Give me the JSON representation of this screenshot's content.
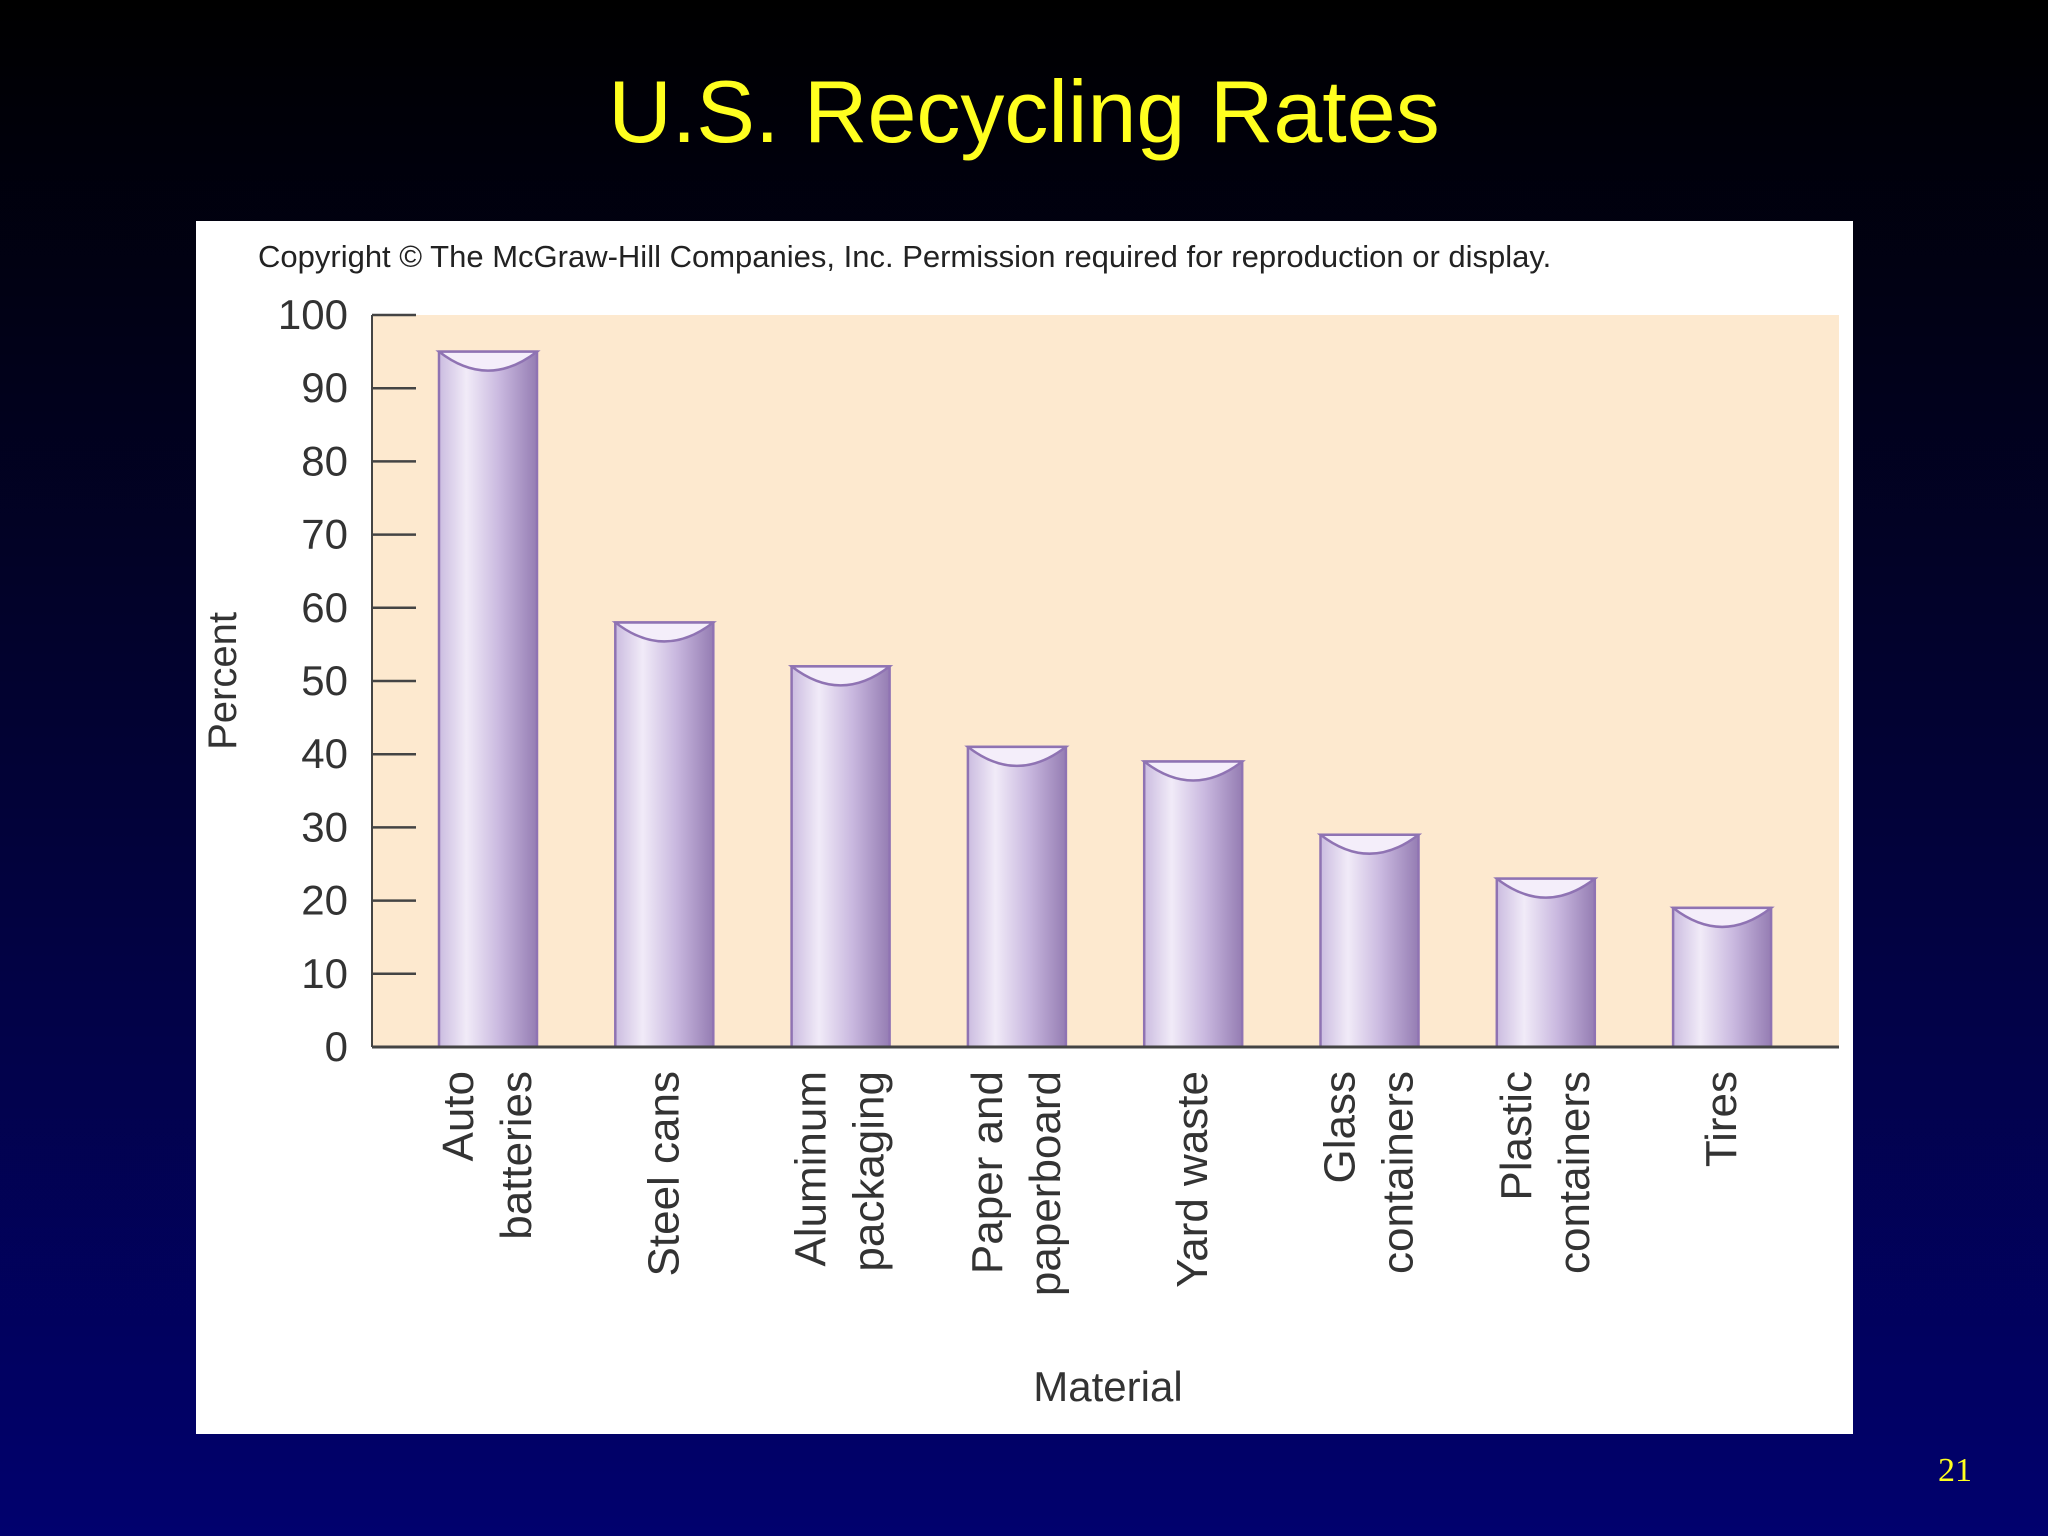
{
  "slide": {
    "title": "U.S. Recycling Rates",
    "page_number": "21"
  },
  "figure": {
    "copyright": "Copyright © The McGraw-Hill Companies, Inc. Permission required for reproduction or display."
  },
  "colors": {
    "background_top": "#000000",
    "background_bottom": "#01016e",
    "title": "#ffff1f",
    "plot_area": "#fde9cf",
    "bar_light": "#ece2f5",
    "bar_dark": "#9a84b6",
    "bar_edge": "#8f73b3"
  },
  "chart_data": {
    "type": "bar",
    "title": "",
    "xlabel": "Material",
    "ylabel": "Percent",
    "ylim": [
      0,
      100
    ],
    "yticks": [
      0,
      10,
      20,
      30,
      40,
      50,
      60,
      70,
      80,
      90,
      100
    ],
    "grid": false,
    "categories": [
      [
        "Auto",
        "batteries"
      ],
      [
        "Steel cans"
      ],
      [
        "Aluminum",
        "packaging"
      ],
      [
        "Paper and",
        "paperboard"
      ],
      [
        "Yard waste"
      ],
      [
        "Glass",
        "containers"
      ],
      [
        "Plastic",
        "containers"
      ],
      [
        "Tires"
      ]
    ],
    "values": [
      95,
      58,
      52,
      41,
      39,
      29,
      23,
      19
    ]
  }
}
